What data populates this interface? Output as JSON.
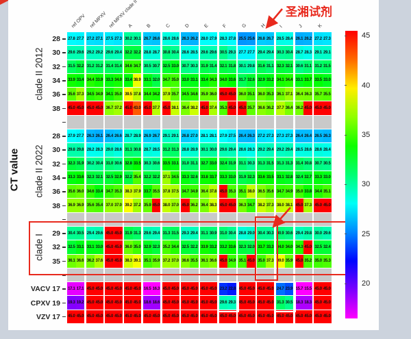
{
  "ylabel": "CT value",
  "annotations": {
    "reagent_label": "圣湘试剂",
    "boxed_region": "clade I rows",
    "boxed_column": "H",
    "white_outlined_columns": [
      "F",
      "I"
    ],
    "white_outlined_rows": [
      "VACV 17",
      "CPXV 19"
    ]
  },
  "chart_data": {
    "type": "heatmap",
    "title": "",
    "xlabel": "",
    "ylabel": "CT value",
    "columns": [
      "ref OPV",
      "ref MPXV",
      "ref MPXV clade II",
      "A",
      "B",
      "C",
      "D",
      "E",
      "F",
      "G",
      "H",
      "I",
      "J",
      "K"
    ],
    "replicates_per_column": 2,
    "colorbar": {
      "tick_labels": [
        "45",
        "40",
        "35",
        "30",
        "25",
        "20"
      ],
      "vmax": 45.5,
      "vmin": 16.5,
      "colormap": "rainbow red(high) to magenta(low)"
    },
    "row_groups": [
      {
        "label": "clade II 2012",
        "rows": [
          {
            "tick": "28",
            "values": [
              27.8,
              27.7,
              27.2,
              27.1,
              27.5,
              27.3,
              30.2,
              30.1,
              26.7,
              26.6,
              28.6,
              28.6,
              26.3,
              26.2,
              28.0,
              27.9,
              28.3,
              27.8,
              25.5,
              25.6,
              26.8,
              26.7,
              28.5,
              28.4,
              26.1,
              26.2,
              27.2,
              27.3
            ]
          },
          {
            "tick": "30",
            "values": [
              29.6,
              29.6,
              29.2,
              29.2,
              29.6,
              29.4,
              32.2,
              32.2,
              28.8,
              28.7,
              30.8,
              30.4,
              28.6,
              28.5,
              29.6,
              29.6,
              30.5,
              29.3,
              27.7,
              27.7,
              29.4,
              29.4,
              30.3,
              30.4,
              28.7,
              28.3,
              29.1,
              29.1
            ]
          },
          {
            "tick": "32",
            "values": [
              31.5,
              32.2,
              31.2,
              31.2,
              31.4,
              31.4,
              34.6,
              34.7,
              30.5,
              30.7,
              32.5,
              33.0,
              30.7,
              30.3,
              31.9,
              31.4,
              32.1,
              31.8,
              30.1,
              29.8,
              31.6,
              31.1,
              32.3,
              32.1,
              30.6,
              31.1,
              31.2,
              31.5
            ]
          },
          {
            "tick": "34",
            "values": [
              33.9,
              33.4,
              34.4,
              33.9,
              33.3,
              34.0,
              33.4,
              38.9,
              33.1,
              32.0,
              34.7,
              35.0,
              33.0,
              33.1,
              33.4,
              34.3,
              34.0,
              33.6,
              31.7,
              32.6,
              32.9,
              33.2,
              34.1,
              34.4,
              33.1,
              33.7,
              33.5,
              33.0
            ]
          },
          {
            "tick": "36",
            "values": [
              35.6,
              37.3,
              34.5,
              34.9,
              34.1,
              35.0,
              39.5,
              37.8,
              34.4,
              34.2,
              37.9,
              35.7,
              34.5,
              34.6,
              35.9,
              36.0,
              45.0,
              45.0,
              36.0,
              35.1,
              36.0,
              35.3,
              36.1,
              37.1,
              36.4,
              36.3,
              35.7,
              35.5
            ]
          },
          {
            "tick": "38",
            "values": [
              45.0,
              45.0,
              45.0,
              45.0,
              36.7,
              37.2,
              45.0,
              43.0,
              45.0,
              37.7,
              45.0,
              38.1,
              36.4,
              38.2,
              45.0,
              37.4,
              35.3,
              45.0,
              45.0,
              35.7,
              36.6,
              36.2,
              37.7,
              36.4,
              36.2,
              45.0,
              45.0,
              45.0
            ]
          }
        ]
      },
      {
        "label": "clade II 2022",
        "rows": [
          {
            "tick": "28",
            "values": [
              27.9,
              27.7,
              26.3,
              26.1,
              26.4,
              26.6,
              28.7,
              28.9,
              26.9,
              26.7,
              29.1,
              29.1,
              26.8,
              27.0,
              28.1,
              28.1,
              27.9,
              27.5,
              26.4,
              26.3,
              27.2,
              27.3,
              27.3,
              27.3,
              26.4,
              26.4,
              26.5,
              26.3
            ]
          },
          {
            "tick": "30",
            "values": [
              29.8,
              29.8,
              28.2,
              28.3,
              29.0,
              28.6,
              31.1,
              30.8,
              28.7,
              28.5,
              31.2,
              31.3,
              28.8,
              28.9,
              30.1,
              30.0,
              29.6,
              29.4,
              28.6,
              28.3,
              29.2,
              29.4,
              29.2,
              29.4,
              28.5,
              28.6,
              28.6,
              28.4
            ]
          },
          {
            "tick": "32",
            "values": [
              32.3,
              31.9,
              30.2,
              30.4,
              31.0,
              30.6,
              32.8,
              33.5,
              30.3,
              30.6,
              33.5,
              33.1,
              31.0,
              31.1,
              32.7,
              33.0,
              32.4,
              31.9,
              31.1,
              30.3,
              31.3,
              31.5,
              31.3,
              31.3,
              31.4,
              30.8,
              30.7,
              30.5
            ]
          },
          {
            "tick": "34",
            "values": [
              33.3,
              33.6,
              32.3,
              32.1,
              32.5,
              32.9,
              32.2,
              35.4,
              32.2,
              32.2,
              37.1,
              34.5,
              33.3,
              32.6,
              33.8,
              33.7,
              33.3,
              33.0,
              31.9,
              32.3,
              33.6,
              33.5,
              33.1,
              32.8,
              32.4,
              32.7,
              33.3,
              33.0
            ]
          },
          {
            "tick": "36",
            "values": [
              35.6,
              36.0,
              34.6,
              33.4,
              34.7,
              35.3,
              38.3,
              37.9,
              33.7,
              35.5,
              37.8,
              37.5,
              34.7,
              34.9,
              36.4,
              37.8,
              45.0,
              35.3,
              35.1,
              38.0,
              36.5,
              35.6,
              34.7,
              34.9,
              35.0,
              33.8,
              34.4,
              35.1
            ]
          },
          {
            "tick": "38",
            "values": [
              36.9,
              36.9,
              35.6,
              35.4,
              37.0,
              37.0,
              39.2,
              37.2,
              35.9,
              45.0,
              38.0,
              37.0,
              45.0,
              36.2,
              36.4,
              38.3,
              45.0,
              45.0,
              36.3,
              34.7,
              38.2,
              37.3,
              38.0,
              38.1,
              45.0,
              37.3,
              45.0,
              45.0
            ]
          }
        ]
      },
      {
        "label": "clade I",
        "rows": [
          {
            "tick": "29",
            "values": [
              30.4,
              30.5,
              29.4,
              29.6,
              45.0,
              45.0,
              31.9,
              31.3,
              29.6,
              29.4,
              31.3,
              31.5,
              29.3,
              29.4,
              31.1,
              30.9,
              31.0,
              30.4,
              28.8,
              29.0,
              30.4,
              30.3,
              30.9,
              30.6,
              29.4,
              29.8,
              30.0,
              29.6
            ]
          },
          {
            "tick": "32",
            "values": [
              32.5,
              33.1,
              33.1,
              33.0,
              45.0,
              45.0,
              36.0,
              35.0,
              32.9,
              32.3,
              35.2,
              34.4,
              32.5,
              32.2,
              33.9,
              33.2,
              33.2,
              33.6,
              32.3,
              32.0,
              33.7,
              33.3,
              34.0,
              34.0,
              34.3,
              45.0,
              32.5,
              32.4
            ]
          },
          {
            "tick": "35",
            "values": [
              36.1,
              36.6,
              36.2,
              37.6,
              45.0,
              45.0,
              38.3,
              39.1,
              35.1,
              35.9,
              37.2,
              37.0,
              36.6,
              35.5,
              36.1,
              36.6,
              45.0,
              34.9,
              35.1,
              45.0,
              35.0,
              37.3,
              39.0,
              35.9,
              45.0,
              35.2,
              35.0,
              35.3
            ]
          }
        ]
      },
      {
        "label": "",
        "rows": [
          {
            "tick": "VACV 17",
            "values": [
              17.1,
              17.1,
              45.0,
              45.0,
              45.0,
              45.0,
              45.0,
              45.0,
              16.5,
              16.3,
              45.0,
              45.0,
              45.0,
              45.0,
              45.0,
              45.0,
              23.2,
              22.8,
              45.0,
              45.0,
              45.0,
              45.0,
              24.7,
              23.9,
              15.7,
              15.5,
              45.0,
              45.0
            ]
          },
          {
            "tick": "CPXV 19",
            "values": [
              19.3,
              19.2,
              45.0,
              45.0,
              45.0,
              45.0,
              45.0,
              45.0,
              18.6,
              18.6,
              45.0,
              45.0,
              45.0,
              45.0,
              45.0,
              45.0,
              29.6,
              29.3,
              45.0,
              45.0,
              45.0,
              45.0,
              31.3,
              30.5,
              18.3,
              18.3,
              45.0,
              45.0
            ]
          },
          {
            "tick": "VZV 17",
            "values": [
              45.0,
              45.0,
              45.0,
              45.0,
              45.0,
              45.0,
              45.0,
              45.0,
              45.0,
              45.0,
              45.0,
              45.0,
              45.0,
              45.0,
              45.0,
              45.0,
              45.0,
              45.0,
              45.0,
              45.0,
              45.0,
              45.0,
              45.0,
              45.0,
              45.0,
              45.0,
              45.0,
              45.0
            ]
          }
        ]
      }
    ]
  }
}
